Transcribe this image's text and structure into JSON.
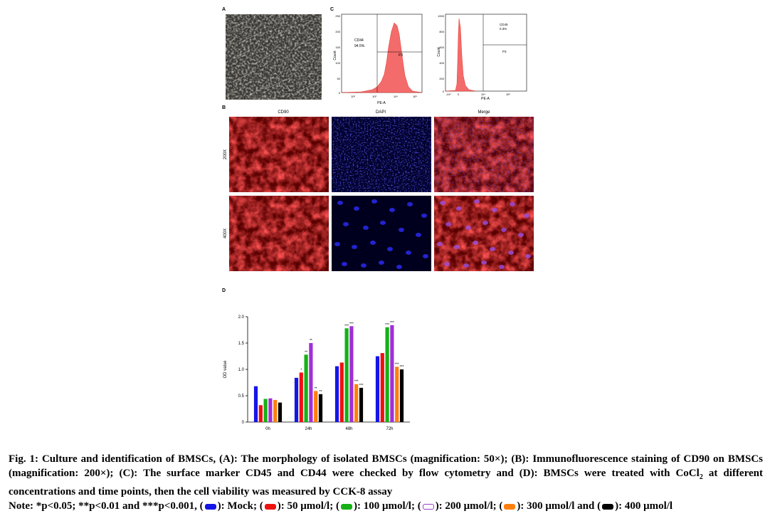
{
  "panels": {
    "a": "A",
    "b": "B",
    "c": "C",
    "d": "D"
  },
  "flow_left": {
    "gate_label": "CD44",
    "gate_pct": "94.5%",
    "gate_name": "P3",
    "y_label": "Count",
    "x_label": "PE-A",
    "y_ticks": [
      "250",
      "200",
      "150",
      "100",
      "50",
      "0"
    ],
    "x_ticks": [
      "10²",
      "10³",
      "10⁴",
      "10⁵"
    ]
  },
  "flow_right": {
    "gate_label": "CD45",
    "gate_pct": "0.3%",
    "gate_name": "P3",
    "y_label": "Count",
    "x_label": "PE-A",
    "y_ticks": [
      "1000",
      "800",
      "600",
      "400",
      "200",
      "0"
    ],
    "x_ticks": [
      "-10⁴",
      "0",
      "10⁴",
      "10⁵"
    ]
  },
  "if_cols": [
    "CD90",
    "DAPI",
    "Merge"
  ],
  "if_rows": [
    "200X",
    "400X"
  ],
  "colors": {
    "mock": "#1515e6",
    "c50": "#ee1111",
    "c100": "#16b116",
    "c200": "#a02fd6",
    "c300": "#ff7f0e",
    "c400": "#000000"
  },
  "chart_data": {
    "type": "bar",
    "categories": [
      "0h",
      "24h",
      "48h",
      "72h"
    ],
    "ylabel": "OD value",
    "ylim": [
      0,
      2.0
    ],
    "yticks": [
      "0",
      "0.5",
      "1.0",
      "1.5",
      "2.0"
    ],
    "series": [
      {
        "values": [
          0.68,
          0.84,
          1.06,
          1.25
        ],
        "sig": [
          "",
          "",
          "",
          ""
        ]
      },
      {
        "values": [
          0.32,
          0.94,
          1.13,
          1.31
        ],
        "sig": [
          "",
          "*",
          "",
          ""
        ]
      },
      {
        "values": [
          0.44,
          1.28,
          1.78,
          1.8
        ],
        "sig": [
          "",
          "**",
          "***",
          "***"
        ]
      },
      {
        "values": [
          0.45,
          1.5,
          1.82,
          1.84
        ],
        "sig": [
          "",
          "**",
          "***",
          "***"
        ]
      },
      {
        "values": [
          0.42,
          0.59,
          0.72,
          1.05
        ],
        "sig": [
          "",
          "**",
          "***",
          "***"
        ]
      },
      {
        "values": [
          0.37,
          0.53,
          0.65,
          1.0
        ],
        "sig": [
          "",
          "**",
          "***",
          "***"
        ]
      }
    ]
  },
  "caption": {
    "line1": "Fig. 1: Culture and identification of BMSCs, (A): The morphology of isolated BMSCs (magnification: 50×); (B): Immunofluorescence staining of CD90 on BMSCs (magnification: 200×); (C): The surface marker CD45 and CD44 were checked by flow cytometry and (D): BMSCs were treated with CoCl",
    "sub": "2",
    "line1b": " at different concentrations and time points, then the cell viability was measured by CCK-8 assay",
    "note_prefix": "Note: *p<0.05; **p<0.01 and ***p<0.001, (",
    "mock": "): Mock; (",
    "c50": "): 50 μmol/l; (",
    "c100": "): 100 μmol/l; (",
    "c200": "): 200 μmol/l; (",
    "c300": "): 300 μmol/l and (",
    "c400": "): 400 μmol/l"
  }
}
